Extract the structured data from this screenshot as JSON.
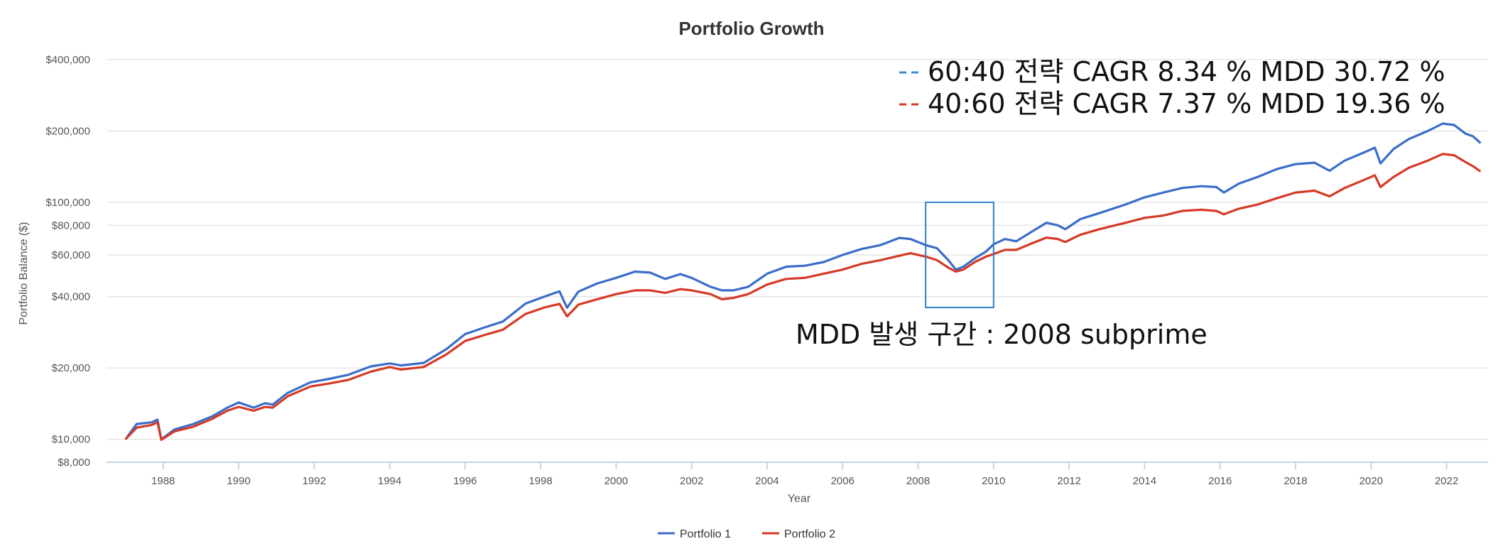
{
  "chart_data": {
    "type": "line",
    "title": "Portfolio Growth",
    "xlabel": "Year",
    "ylabel": "Portfolio Balance ($)",
    "yscale": "log",
    "ylim": [
      8000,
      400000
    ],
    "xlim": [
      1986.5,
      2023.1
    ],
    "y_ticks": [
      {
        "value": 8000,
        "label": "$8,000"
      },
      {
        "value": 10000,
        "label": "$10,000"
      },
      {
        "value": 20000,
        "label": "$20,000"
      },
      {
        "value": 40000,
        "label": "$40,000"
      },
      {
        "value": 60000,
        "label": "$60,000"
      },
      {
        "value": 80000,
        "label": "$80,000"
      },
      {
        "value": 100000,
        "label": "$100,000"
      },
      {
        "value": 200000,
        "label": "$200,000"
      },
      {
        "value": 400000,
        "label": "$400,000"
      }
    ],
    "x_ticks": [
      "1988",
      "1990",
      "1992",
      "1994",
      "1996",
      "1998",
      "2000",
      "2002",
      "2004",
      "2006",
      "2008",
      "2010",
      "2012",
      "2014",
      "2016",
      "2018",
      "2020",
      "2022"
    ],
    "series": [
      {
        "name": "Portfolio 1",
        "color": "#3b6dc9",
        "x": [
          1987.0,
          1987.3,
          1987.7,
          1987.85,
          1987.95,
          1988.3,
          1988.8,
          1989.3,
          1989.7,
          1990.0,
          1990.4,
          1990.7,
          1990.9,
          1991.3,
          1991.9,
          1992.4,
          1992.9,
          1993.5,
          1994.0,
          1994.3,
          1994.9,
          1995.5,
          1996.0,
          1996.5,
          1997.0,
          1997.6,
          1998.1,
          1998.5,
          1998.7,
          1999.0,
          1999.5,
          2000.0,
          2000.5,
          2000.9,
          2001.3,
          2001.7,
          2002.0,
          2002.5,
          2002.8,
          2003.1,
          2003.5,
          2004.0,
          2004.5,
          2005.0,
          2005.5,
          2006.0,
          2006.5,
          2007.0,
          2007.5,
          2007.8,
          2008.2,
          2008.5,
          2008.8,
          2009.0,
          2009.2,
          2009.5,
          2009.8,
          2010.0,
          2010.3,
          2010.6,
          2011.0,
          2011.4,
          2011.7,
          2011.9,
          2012.3,
          2012.8,
          2013.5,
          2014.0,
          2014.5,
          2015.0,
          2015.5,
          2015.9,
          2016.1,
          2016.5,
          2017.0,
          2017.5,
          2018.0,
          2018.5,
          2018.9,
          2019.3,
          2019.8,
          2020.1,
          2020.25,
          2020.6,
          2021.0,
          2021.5,
          2021.9,
          2022.2,
          2022.5,
          2022.7,
          2022.9
        ],
        "values": [
          10000,
          11600,
          11800,
          12100,
          10000,
          11000,
          11600,
          12500,
          13600,
          14300,
          13600,
          14200,
          14000,
          15700,
          17400,
          18000,
          18700,
          20300,
          20900,
          20500,
          21000,
          24000,
          27800,
          29600,
          31400,
          37400,
          40000,
          42100,
          35900,
          42000,
          45500,
          48000,
          51000,
          50500,
          47500,
          49800,
          48000,
          44000,
          42500,
          42500,
          44000,
          50000,
          53500,
          54000,
          56000,
          60000,
          63500,
          66000,
          70800,
          70000,
          66000,
          64000,
          57000,
          52000,
          53500,
          58000,
          62000,
          66500,
          70000,
          68500,
          75000,
          82000,
          80000,
          77000,
          85000,
          90000,
          98000,
          105000,
          110000,
          115000,
          117000,
          116000,
          110000,
          120000,
          128000,
          138000,
          145000,
          147000,
          136000,
          150000,
          162000,
          170000,
          146000,
          168000,
          185000,
          200000,
          215000,
          212000,
          195000,
          190000,
          178000
        ]
      },
      {
        "name": "Portfolio 2",
        "color": "#d53a26",
        "x": [
          1987.0,
          1987.3,
          1987.7,
          1987.85,
          1987.95,
          1988.3,
          1988.8,
          1989.3,
          1989.7,
          1990.0,
          1990.4,
          1990.7,
          1990.9,
          1991.3,
          1991.9,
          1992.4,
          1992.9,
          1993.5,
          1994.0,
          1994.3,
          1994.9,
          1995.5,
          1996.0,
          1996.5,
          1997.0,
          1997.6,
          1998.1,
          1998.5,
          1998.7,
          1999.0,
          1999.5,
          2000.0,
          2000.5,
          2000.9,
          2001.3,
          2001.7,
          2002.0,
          2002.5,
          2002.8,
          2003.1,
          2003.5,
          2004.0,
          2004.5,
          2005.0,
          2005.5,
          2006.0,
          2006.5,
          2007.0,
          2007.5,
          2007.8,
          2008.2,
          2008.5,
          2008.8,
          2009.0,
          2009.2,
          2009.5,
          2009.8,
          2010.0,
          2010.3,
          2010.6,
          2011.0,
          2011.4,
          2011.7,
          2011.9,
          2012.3,
          2012.8,
          2013.5,
          2014.0,
          2014.5,
          2015.0,
          2015.5,
          2015.9,
          2016.1,
          2016.5,
          2017.0,
          2017.5,
          2018.0,
          2018.5,
          2018.9,
          2019.3,
          2019.8,
          2020.1,
          2020.25,
          2020.6,
          2021.0,
          2021.5,
          2021.9,
          2022.2,
          2022.5,
          2022.7,
          2022.9
        ],
        "values": [
          10000,
          11200,
          11500,
          11800,
          9950,
          10800,
          11300,
          12200,
          13200,
          13700,
          13200,
          13700,
          13600,
          15200,
          16700,
          17200,
          17800,
          19300,
          20200,
          19700,
          20200,
          22800,
          26000,
          27500,
          29000,
          33800,
          36000,
          37300,
          33000,
          37000,
          39000,
          41000,
          42500,
          42500,
          41500,
          43000,
          42500,
          41000,
          39000,
          39500,
          41000,
          45000,
          47500,
          48000,
          50000,
          52000,
          55000,
          57000,
          59500,
          61000,
          59000,
          57000,
          53000,
          51000,
          52000,
          56000,
          59000,
          60500,
          63000,
          63000,
          67000,
          71000,
          70000,
          68000,
          73000,
          77000,
          82000,
          86000,
          88000,
          92000,
          93000,
          92000,
          89000,
          94000,
          98000,
          104000,
          110000,
          112000,
          106000,
          115000,
          124000,
          130000,
          116000,
          128000,
          140000,
          150000,
          160000,
          158000,
          148000,
          142000,
          135000
        ]
      }
    ],
    "legend": [
      "Portfolio 1",
      "Portfolio 2"
    ],
    "annotations": {
      "line1": "60:40 전략 CAGR 8.34 % MDD 30.72 %",
      "line2": "40:60 전략 CAGR 7.37 % MDD 19.36 %",
      "mdd_label": "MDD 발생 구간 : 2008 subprime",
      "mdd_box": {
        "x_from": 2008.2,
        "x_to": 2010.0,
        "y_from": 36000,
        "y_to": 100000
      }
    }
  }
}
